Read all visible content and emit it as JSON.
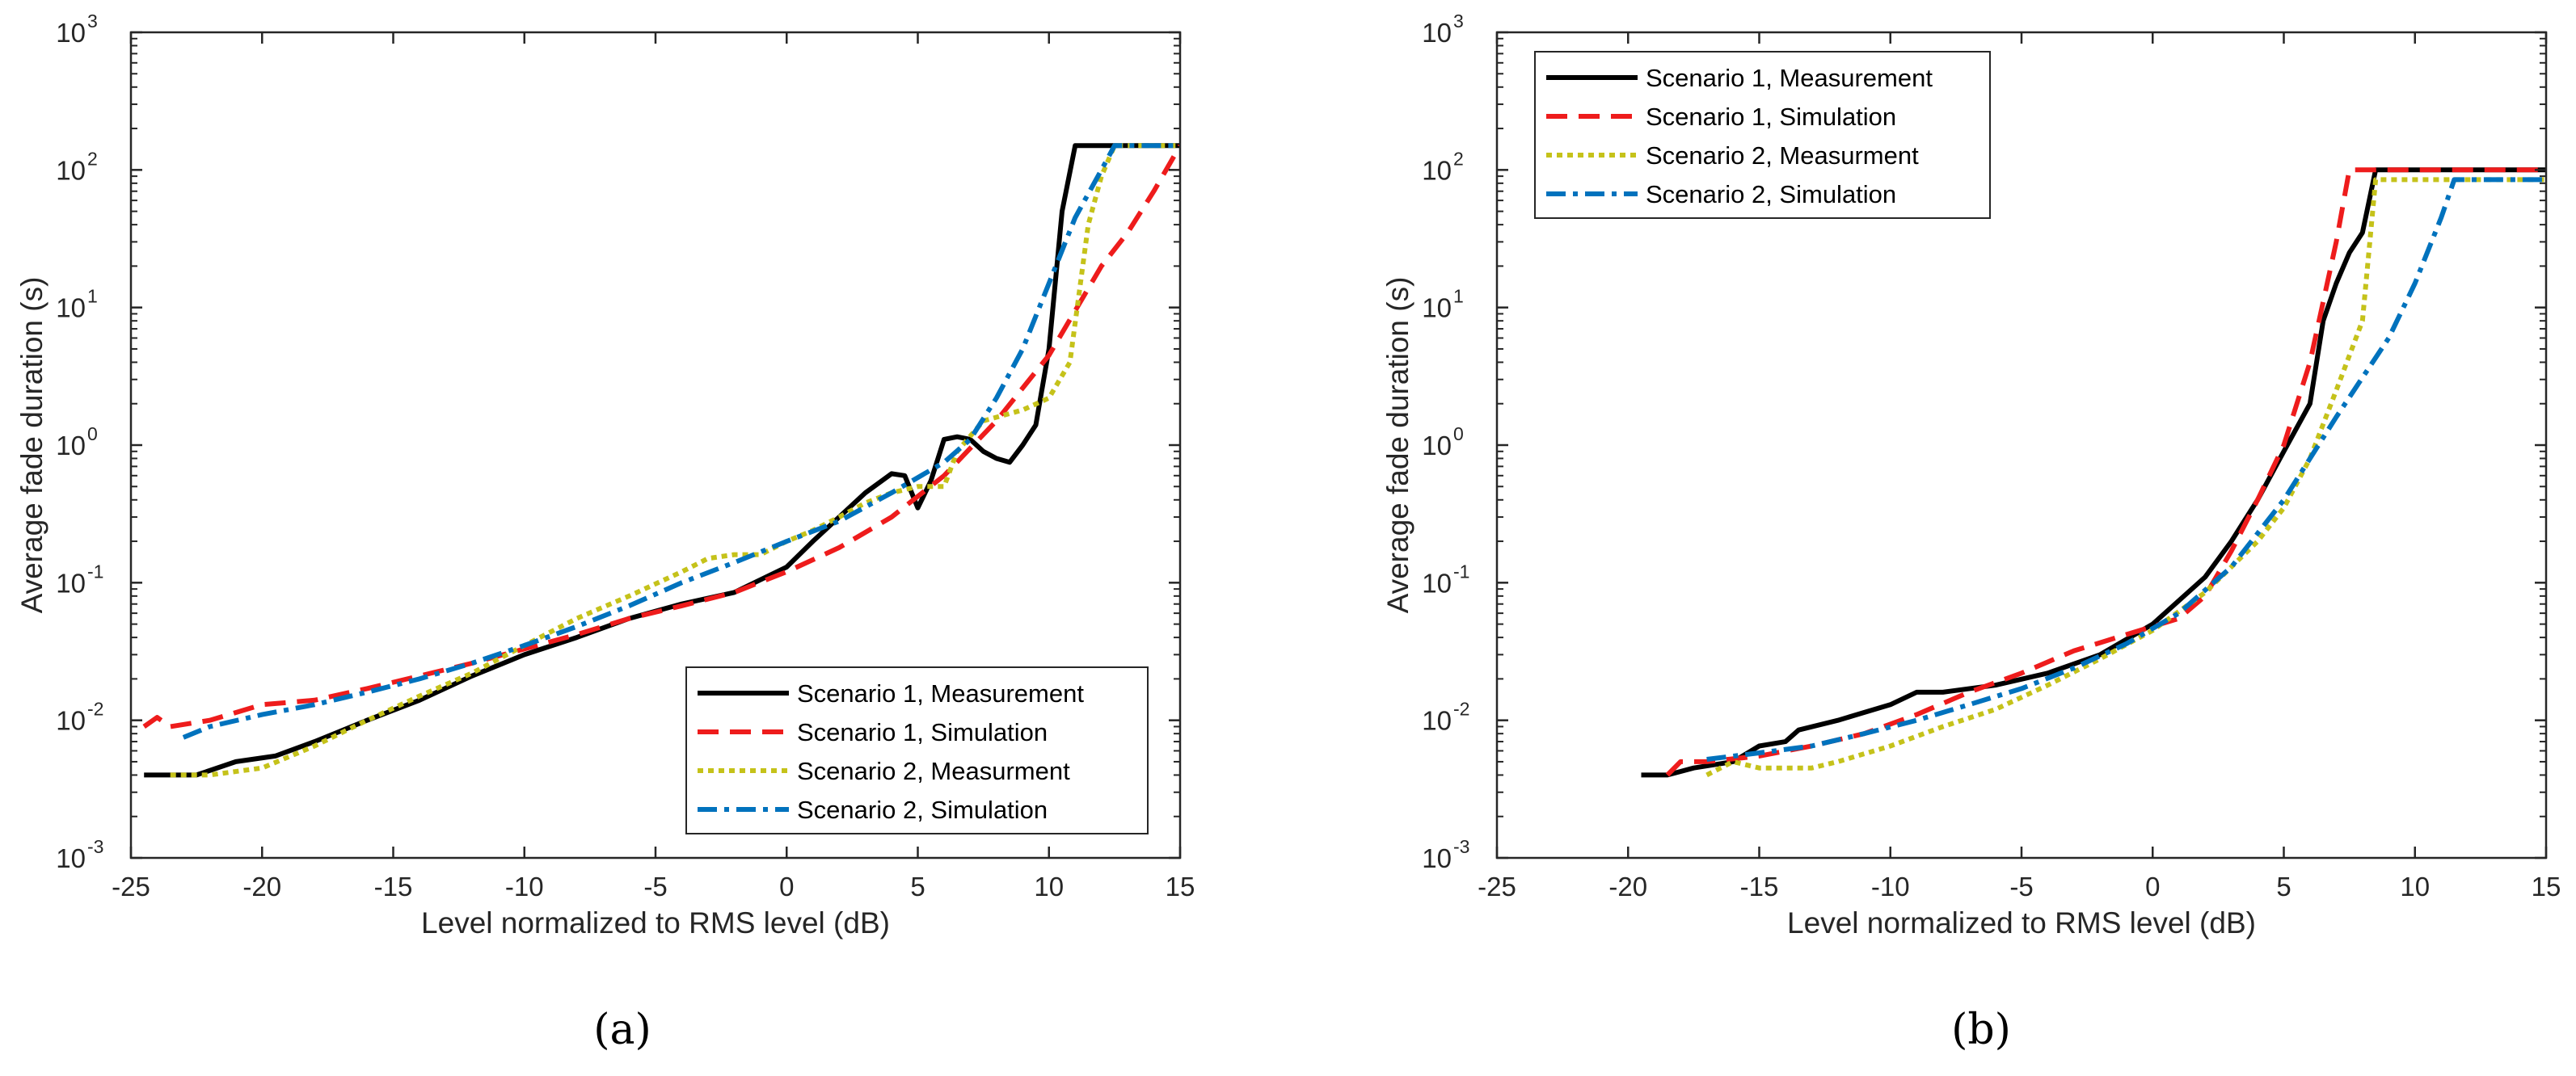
{
  "chart_data": [
    {
      "type": "line",
      "caption": "(a)",
      "xlabel": "Level normalized to RMS level (dB)",
      "ylabel": "Average fade duration (s)",
      "xlim": [
        -25,
        15
      ],
      "ylim": [
        0.001,
        1000
      ],
      "yscale": "log",
      "xticks": [
        "-25",
        "-20",
        "-15",
        "-10",
        "-5",
        "0",
        "5",
        "10",
        "15"
      ],
      "yticks": [
        {
          "base": "10",
          "exp": "-3"
        },
        {
          "base": "10",
          "exp": "-2"
        },
        {
          "base": "10",
          "exp": "-1"
        },
        {
          "base": "10",
          "exp": "0"
        },
        {
          "base": "10",
          "exp": "1"
        },
        {
          "base": "10",
          "exp": "2"
        },
        {
          "base": "10",
          "exp": "3"
        }
      ],
      "legend_position": "bottom-right",
      "series": [
        {
          "name": "Scenario 1, Measurement",
          "color": "#000000",
          "style": "solid",
          "points": [
            [
              -24.5,
              0.004
            ],
            [
              -22.5,
              0.004
            ],
            [
              -21,
              0.005
            ],
            [
              -19.5,
              0.0055
            ],
            [
              -18,
              0.007
            ],
            [
              -16,
              0.01
            ],
            [
              -14,
              0.014
            ],
            [
              -12,
              0.021
            ],
            [
              -10,
              0.03
            ],
            [
              -8,
              0.04
            ],
            [
              -6,
              0.055
            ],
            [
              -4,
              0.07
            ],
            [
              -2,
              0.085
            ],
            [
              0,
              0.13
            ],
            [
              1,
              0.2
            ],
            [
              2,
              0.3
            ],
            [
              3,
              0.45
            ],
            [
              4,
              0.62
            ],
            [
              4.5,
              0.6
            ],
            [
              5,
              0.35
            ],
            [
              5.5,
              0.55
            ],
            [
              6,
              1.1
            ],
            [
              6.5,
              1.15
            ],
            [
              7,
              1.1
            ],
            [
              7.5,
              0.9
            ],
            [
              8,
              0.8
            ],
            [
              8.5,
              0.75
            ],
            [
              9,
              1.0
            ],
            [
              9.5,
              1.4
            ],
            [
              10,
              5
            ],
            [
              10.5,
              50
            ],
            [
              11,
              150
            ],
            [
              15,
              150
            ]
          ]
        },
        {
          "name": "Scenario 1, Simulation",
          "color": "#ee1c1c",
          "style": "dashed",
          "points": [
            [
              -24.5,
              0.009
            ],
            [
              -24,
              0.0105
            ],
            [
              -23.5,
              0.009
            ],
            [
              -22,
              0.01
            ],
            [
              -20,
              0.013
            ],
            [
              -18,
              0.014
            ],
            [
              -16,
              0.017
            ],
            [
              -14,
              0.021
            ],
            [
              -12,
              0.026
            ],
            [
              -10,
              0.033
            ],
            [
              -8,
              0.042
            ],
            [
              -6,
              0.055
            ],
            [
              -4,
              0.068
            ],
            [
              -2,
              0.085
            ],
            [
              0,
              0.12
            ],
            [
              2,
              0.18
            ],
            [
              4,
              0.3
            ],
            [
              6,
              0.6
            ],
            [
              8,
              1.5
            ],
            [
              10,
              4.5
            ],
            [
              12,
              20
            ],
            [
              13,
              35
            ],
            [
              14,
              70
            ],
            [
              15,
              150
            ]
          ]
        },
        {
          "name": "Scenario 2, Measurment",
          "color": "#c5c21a",
          "style": "dotted",
          "points": [
            [
              -23.5,
              0.004
            ],
            [
              -22,
              0.004
            ],
            [
              -20,
              0.0045
            ],
            [
              -18,
              0.0065
            ],
            [
              -16,
              0.01
            ],
            [
              -14,
              0.015
            ],
            [
              -12,
              0.022
            ],
            [
              -10,
              0.035
            ],
            [
              -8,
              0.055
            ],
            [
              -6,
              0.08
            ],
            [
              -4,
              0.12
            ],
            [
              -3,
              0.15
            ],
            [
              -2,
              0.16
            ],
            [
              -1,
              0.16
            ],
            [
              0,
              0.2
            ],
            [
              1,
              0.24
            ],
            [
              2,
              0.3
            ],
            [
              3,
              0.38
            ],
            [
              4,
              0.45
            ],
            [
              5,
              0.5
            ],
            [
              6,
              0.5
            ],
            [
              6.5,
              0.9
            ],
            [
              7.5,
              1.5
            ],
            [
              9,
              1.8
            ],
            [
              10,
              2.2
            ],
            [
              10.8,
              4
            ],
            [
              11.5,
              40
            ],
            [
              12,
              90
            ],
            [
              12.5,
              150
            ],
            [
              15,
              150
            ]
          ]
        },
        {
          "name": "Scenario 2, Simulation",
          "color": "#0072bd",
          "style": "dashdot",
          "points": [
            [
              -23,
              0.0075
            ],
            [
              -22,
              0.009
            ],
            [
              -20,
              0.011
            ],
            [
              -18,
              0.013
            ],
            [
              -16,
              0.016
            ],
            [
              -14,
              0.02
            ],
            [
              -12,
              0.026
            ],
            [
              -10,
              0.035
            ],
            [
              -8,
              0.048
            ],
            [
              -6,
              0.068
            ],
            [
              -4,
              0.1
            ],
            [
              -2,
              0.14
            ],
            [
              0,
              0.2
            ],
            [
              2,
              0.28
            ],
            [
              4,
              0.45
            ],
            [
              6,
              0.75
            ],
            [
              7,
              1.1
            ],
            [
              8,
              2.2
            ],
            [
              9,
              5
            ],
            [
              10,
              15
            ],
            [
              11,
              45
            ],
            [
              12,
              100
            ],
            [
              12.5,
              150
            ],
            [
              15,
              150
            ]
          ]
        }
      ]
    },
    {
      "type": "line",
      "caption": "(b)",
      "xlabel": "Level normalized to RMS level (dB)",
      "ylabel": "Average fade duration (s)",
      "xlim": [
        -25,
        15
      ],
      "ylim": [
        0.001,
        1000
      ],
      "yscale": "log",
      "xticks": [
        "-25",
        "-20",
        "-15",
        "-10",
        "-5",
        "0",
        "5",
        "10",
        "15"
      ],
      "yticks": [
        {
          "base": "10",
          "exp": "-3"
        },
        {
          "base": "10",
          "exp": "-2"
        },
        {
          "base": "10",
          "exp": "-1"
        },
        {
          "base": "10",
          "exp": "0"
        },
        {
          "base": "10",
          "exp": "1"
        },
        {
          "base": "10",
          "exp": "2"
        },
        {
          "base": "10",
          "exp": "3"
        }
      ],
      "legend_position": "top-left",
      "series": [
        {
          "name": "Scenario 1, Measurement",
          "color": "#000000",
          "style": "solid",
          "points": [
            [
              -19.5,
              0.004
            ],
            [
              -18.5,
              0.004
            ],
            [
              -17.5,
              0.0045
            ],
            [
              -16,
              0.005
            ],
            [
              -15,
              0.0065
            ],
            [
              -14,
              0.007
            ],
            [
              -13.5,
              0.0085
            ],
            [
              -12,
              0.01
            ],
            [
              -10,
              0.013
            ],
            [
              -9,
              0.016
            ],
            [
              -8,
              0.016
            ],
            [
              -6,
              0.018
            ],
            [
              -4,
              0.022
            ],
            [
              -2,
              0.03
            ],
            [
              0,
              0.05
            ],
            [
              2,
              0.11
            ],
            [
              3,
              0.2
            ],
            [
              4,
              0.4
            ],
            [
              5,
              0.9
            ],
            [
              6,
              2.0
            ],
            [
              6.5,
              8
            ],
            [
              7,
              15
            ],
            [
              7.5,
              25
            ],
            [
              8,
              35
            ],
            [
              8.5,
              100
            ],
            [
              15,
              100
            ]
          ]
        },
        {
          "name": "Scenario 1, Simulation",
          "color": "#ee1c1c",
          "style": "dashed",
          "points": [
            [
              -18.5,
              0.004
            ],
            [
              -18,
              0.005
            ],
            [
              -17,
              0.005
            ],
            [
              -15,
              0.0055
            ],
            [
              -13,
              0.0065
            ],
            [
              -11,
              0.008
            ],
            [
              -9,
              0.011
            ],
            [
              -7,
              0.016
            ],
            [
              -5,
              0.022
            ],
            [
              -3,
              0.032
            ],
            [
              -1,
              0.042
            ],
            [
              1,
              0.055
            ],
            [
              2,
              0.08
            ],
            [
              3,
              0.17
            ],
            [
              4,
              0.4
            ],
            [
              5,
              1.0
            ],
            [
              6,
              4
            ],
            [
              7,
              30
            ],
            [
              7.5,
              100
            ],
            [
              15,
              100
            ]
          ]
        },
        {
          "name": "Scenario 2, Measurment",
          "color": "#c5c21a",
          "style": "dotted",
          "points": [
            [
              -17,
              0.004
            ],
            [
              -16,
              0.005
            ],
            [
              -15,
              0.0045
            ],
            [
              -13,
              0.0045
            ],
            [
              -12,
              0.005
            ],
            [
              -10,
              0.0065
            ],
            [
              -8,
              0.009
            ],
            [
              -6,
              0.012
            ],
            [
              -4,
              0.018
            ],
            [
              -2,
              0.028
            ],
            [
              0,
              0.045
            ],
            [
              2,
              0.085
            ],
            [
              4,
              0.2
            ],
            [
              5,
              0.35
            ],
            [
              6,
              0.8
            ],
            [
              7,
              2.5
            ],
            [
              8,
              8
            ],
            [
              8.5,
              85
            ],
            [
              15,
              85
            ]
          ]
        },
        {
          "name": "Scenario 2, Simulation",
          "color": "#0072bd",
          "style": "dashdot",
          "points": [
            [
              -17,
              0.0052
            ],
            [
              -15,
              0.0058
            ],
            [
              -13,
              0.0065
            ],
            [
              -11,
              0.008
            ],
            [
              -9,
              0.01
            ],
            [
              -7,
              0.013
            ],
            [
              -5,
              0.017
            ],
            [
              -3,
              0.024
            ],
            [
              -1,
              0.036
            ],
            [
              1,
              0.06
            ],
            [
              3,
              0.13
            ],
            [
              5,
              0.4
            ],
            [
              7,
              1.6
            ],
            [
              9,
              6
            ],
            [
              10,
              15
            ],
            [
              11,
              45
            ],
            [
              11.5,
              85
            ],
            [
              15,
              85
            ]
          ]
        }
      ]
    }
  ]
}
